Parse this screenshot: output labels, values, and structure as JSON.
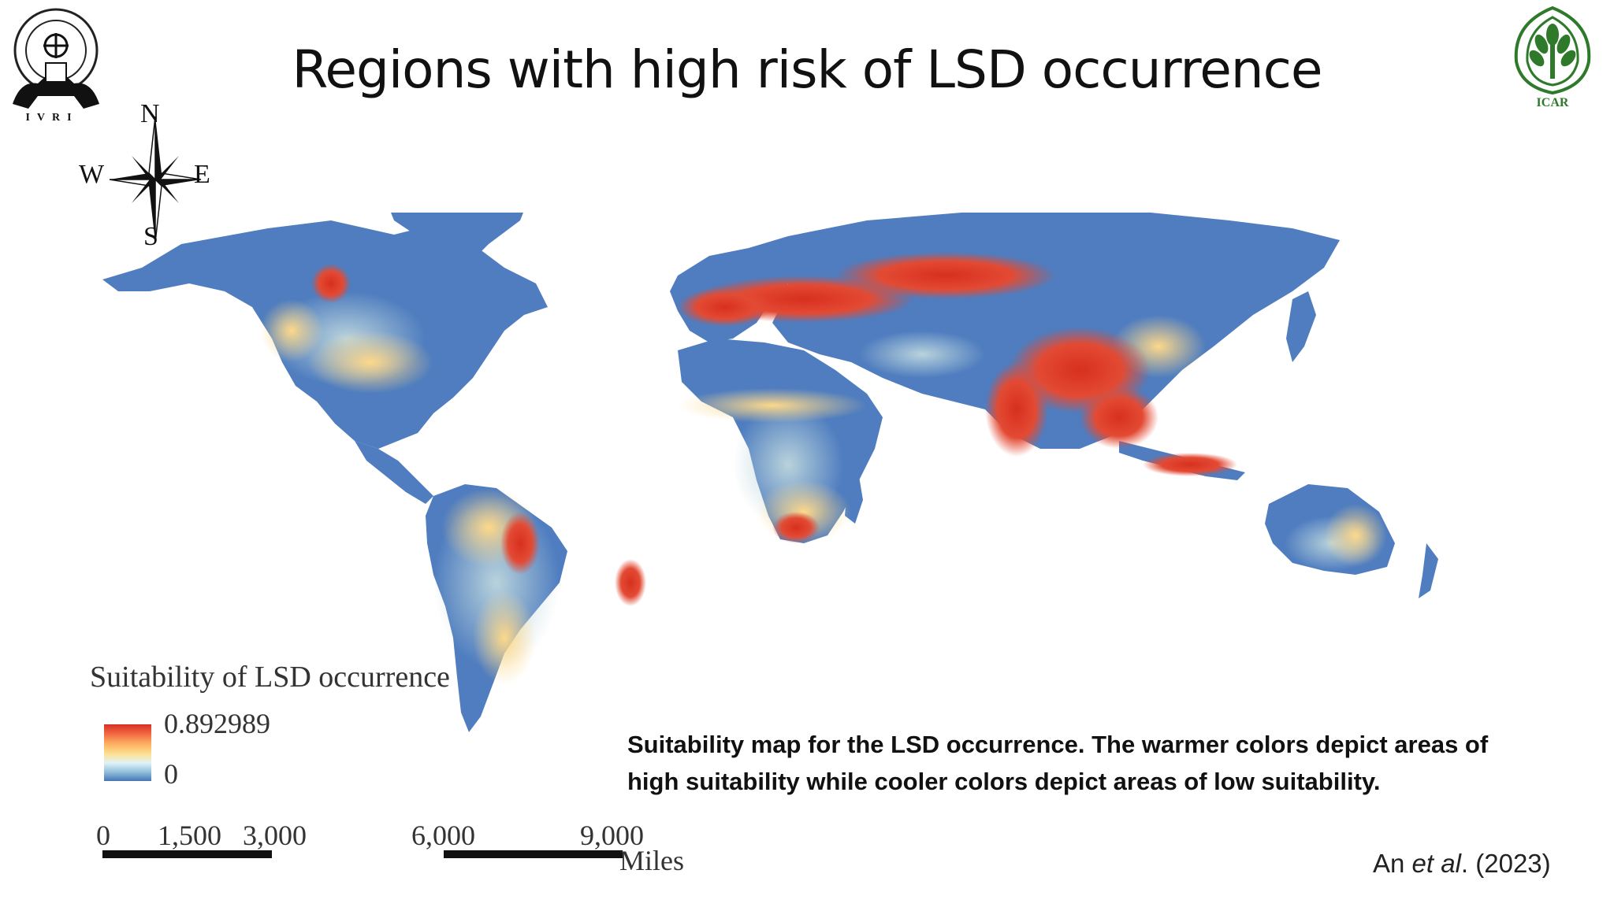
{
  "slide": {
    "title": "Regions with high risk of LSD occurrence",
    "logos": {
      "left_name": "ivri-logo",
      "left_text": "IVRI",
      "right_name": "icar-logo",
      "right_text": "ICAR"
    }
  },
  "compass": {
    "n": "N",
    "w": "W",
    "e": "E",
    "s": "S"
  },
  "legend": {
    "title": "Suitability of LSD occurrence",
    "max_label": "0.892989",
    "min_label": "0",
    "colors": [
      "#d73027",
      "#f46d43",
      "#fdae61",
      "#fee090",
      "#e0f3f8",
      "#91bfdb",
      "#4575b4"
    ]
  },
  "scale": {
    "ticks": [
      "0",
      "1,500",
      "3,000",
      "6,000",
      "9,000"
    ],
    "unit": "Miles"
  },
  "caption": "Suitability map for the LSD occurrence. The warmer colors depict areas of high suitability while cooler colors depict areas of low suitability.",
  "citation": {
    "author": "An ",
    "etal": "et al",
    "rest": ". (2023)"
  },
  "map_colors": {
    "land_low": "#4f7dbf",
    "land_mid": "#a9c6d6",
    "land_warm": "#fde39a",
    "land_high": "#e0392b",
    "water": "#ffffff"
  }
}
